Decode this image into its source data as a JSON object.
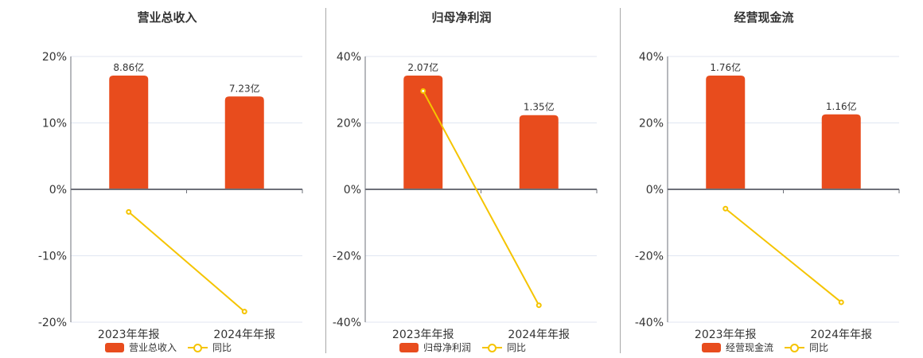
{
  "colors": {
    "bar": "#e84c1d",
    "line": "#f5c400",
    "axis": "#6e7079",
    "grid": "#e0e6f1",
    "text": "#333333",
    "divider": "#a8a8a8"
  },
  "panels": [
    {
      "title": "营业总收入",
      "legend": {
        "bar": "营业总收入",
        "line": "同比"
      },
      "x_labels": [
        "2023年年报",
        "2024年年报"
      ],
      "y_ticks": [
        "20%",
        "10%",
        "0%",
        "-10%",
        "-20%"
      ],
      "bar_labels": [
        "8.86亿",
        "7.23亿"
      ]
    },
    {
      "title": "归母净利润",
      "legend": {
        "bar": "归母净利润",
        "line": "同比"
      },
      "x_labels": [
        "2023年年报",
        "2024年年报"
      ],
      "y_ticks": [
        "40%",
        "20%",
        "0%",
        "-20%",
        "-40%"
      ],
      "bar_labels": [
        "2.07亿",
        "1.35亿"
      ]
    },
    {
      "title": "经营现金流",
      "legend": {
        "bar": "经营现金流",
        "line": "同比"
      },
      "x_labels": [
        "2023年年报",
        "2024年年报"
      ],
      "y_ticks": [
        "40%",
        "20%",
        "0%",
        "-20%",
        "-40%"
      ],
      "bar_labels": [
        "1.76亿",
        "1.16亿"
      ]
    }
  ],
  "chart_data": [
    {
      "type": "bar",
      "title": "营业总收入",
      "categories": [
        "2023年年报",
        "2024年年报"
      ],
      "series": [
        {
          "name": "营业总收入",
          "type": "bar",
          "unit": "亿",
          "values": [
            8.86,
            7.23
          ],
          "labels": [
            "8.86亿",
            "7.23亿"
          ]
        },
        {
          "name": "同比",
          "type": "line",
          "unit": "%",
          "values": [
            -3.4,
            -18.4
          ]
        }
      ],
      "xlabel": "",
      "ylabel": "",
      "ylim": [
        -20,
        20
      ],
      "yticks": [
        20,
        10,
        0,
        -10,
        -20
      ],
      "grid": true,
      "legend_position": "bottom"
    },
    {
      "type": "bar",
      "title": "归母净利润",
      "categories": [
        "2023年年报",
        "2024年年报"
      ],
      "series": [
        {
          "name": "归母净利润",
          "type": "bar",
          "unit": "亿",
          "values": [
            2.07,
            1.35
          ],
          "labels": [
            "2.07亿",
            "1.35亿"
          ]
        },
        {
          "name": "同比",
          "type": "line",
          "unit": "%",
          "values": [
            29.6,
            -34.9
          ]
        }
      ],
      "xlabel": "",
      "ylabel": "",
      "ylim": [
        -40,
        40
      ],
      "yticks": [
        40,
        20,
        0,
        -20,
        -40
      ],
      "grid": true,
      "legend_position": "bottom"
    },
    {
      "type": "bar",
      "title": "经营现金流",
      "categories": [
        "2023年年报",
        "2024年年报"
      ],
      "series": [
        {
          "name": "经营现金流",
          "type": "bar",
          "unit": "亿",
          "values": [
            1.76,
            1.16
          ],
          "labels": [
            "1.76亿",
            "1.16亿"
          ]
        },
        {
          "name": "同比",
          "type": "line",
          "unit": "%",
          "values": [
            -5.8,
            -34.0
          ]
        }
      ],
      "xlabel": "",
      "ylabel": "",
      "ylim": [
        -40,
        40
      ],
      "yticks": [
        40,
        20,
        0,
        -20,
        -40
      ],
      "grid": true,
      "legend_position": "bottom"
    }
  ]
}
